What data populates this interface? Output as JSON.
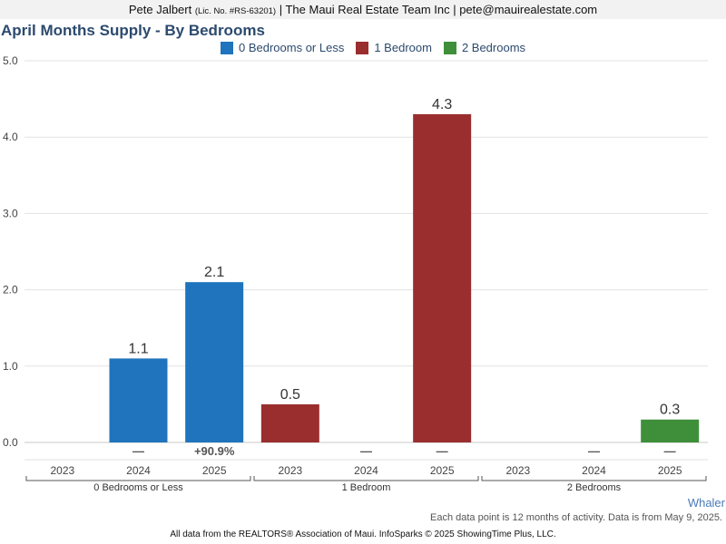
{
  "header": {
    "agent": "Pete Jalbert",
    "license": "(Lic. No. #RS-63201)",
    "rest": "| The Maui Real Estate Team Inc | pete@mauirealestate.com"
  },
  "area_label": "Whaler",
  "note": "Each data point is 12 months of activity. Data is from May 9, 2025.",
  "footer": "All data from the REALTORS® Association of Maui. InfoSparks © 2025 ShowingTime Plus, LLC.",
  "chart_data": {
    "type": "bar",
    "title": "April Months Supply - By Bedrooms",
    "ylim": [
      0,
      5
    ],
    "yticks": [
      "0.0",
      "1.0",
      "2.0",
      "3.0",
      "4.0",
      "5.0"
    ],
    "grid": true,
    "legend_position": "top",
    "groups": [
      {
        "name": "0 Bedrooms or Less",
        "color": "#1f74bd",
        "years": [
          "2023",
          "2024",
          "2025"
        ],
        "values": [
          null,
          1.1,
          2.1
        ],
        "value_labels": [
          "",
          "1.1",
          "2.1"
        ],
        "changes": [
          "",
          "—",
          "+90.9%"
        ]
      },
      {
        "name": "1 Bedroom",
        "color": "#9a2e2e",
        "years": [
          "2023",
          "2024",
          "2025"
        ],
        "values": [
          0.5,
          null,
          4.3
        ],
        "value_labels": [
          "0.5",
          "",
          "4.3"
        ],
        "changes": [
          "",
          "—",
          "—"
        ]
      },
      {
        "name": "2 Bedrooms",
        "color": "#3f8f3a",
        "years": [
          "2023",
          "2024",
          "2025"
        ],
        "values": [
          null,
          null,
          0.3
        ],
        "value_labels": [
          "",
          "",
          "0.3"
        ],
        "changes": [
          "",
          "—",
          "—"
        ]
      }
    ]
  }
}
